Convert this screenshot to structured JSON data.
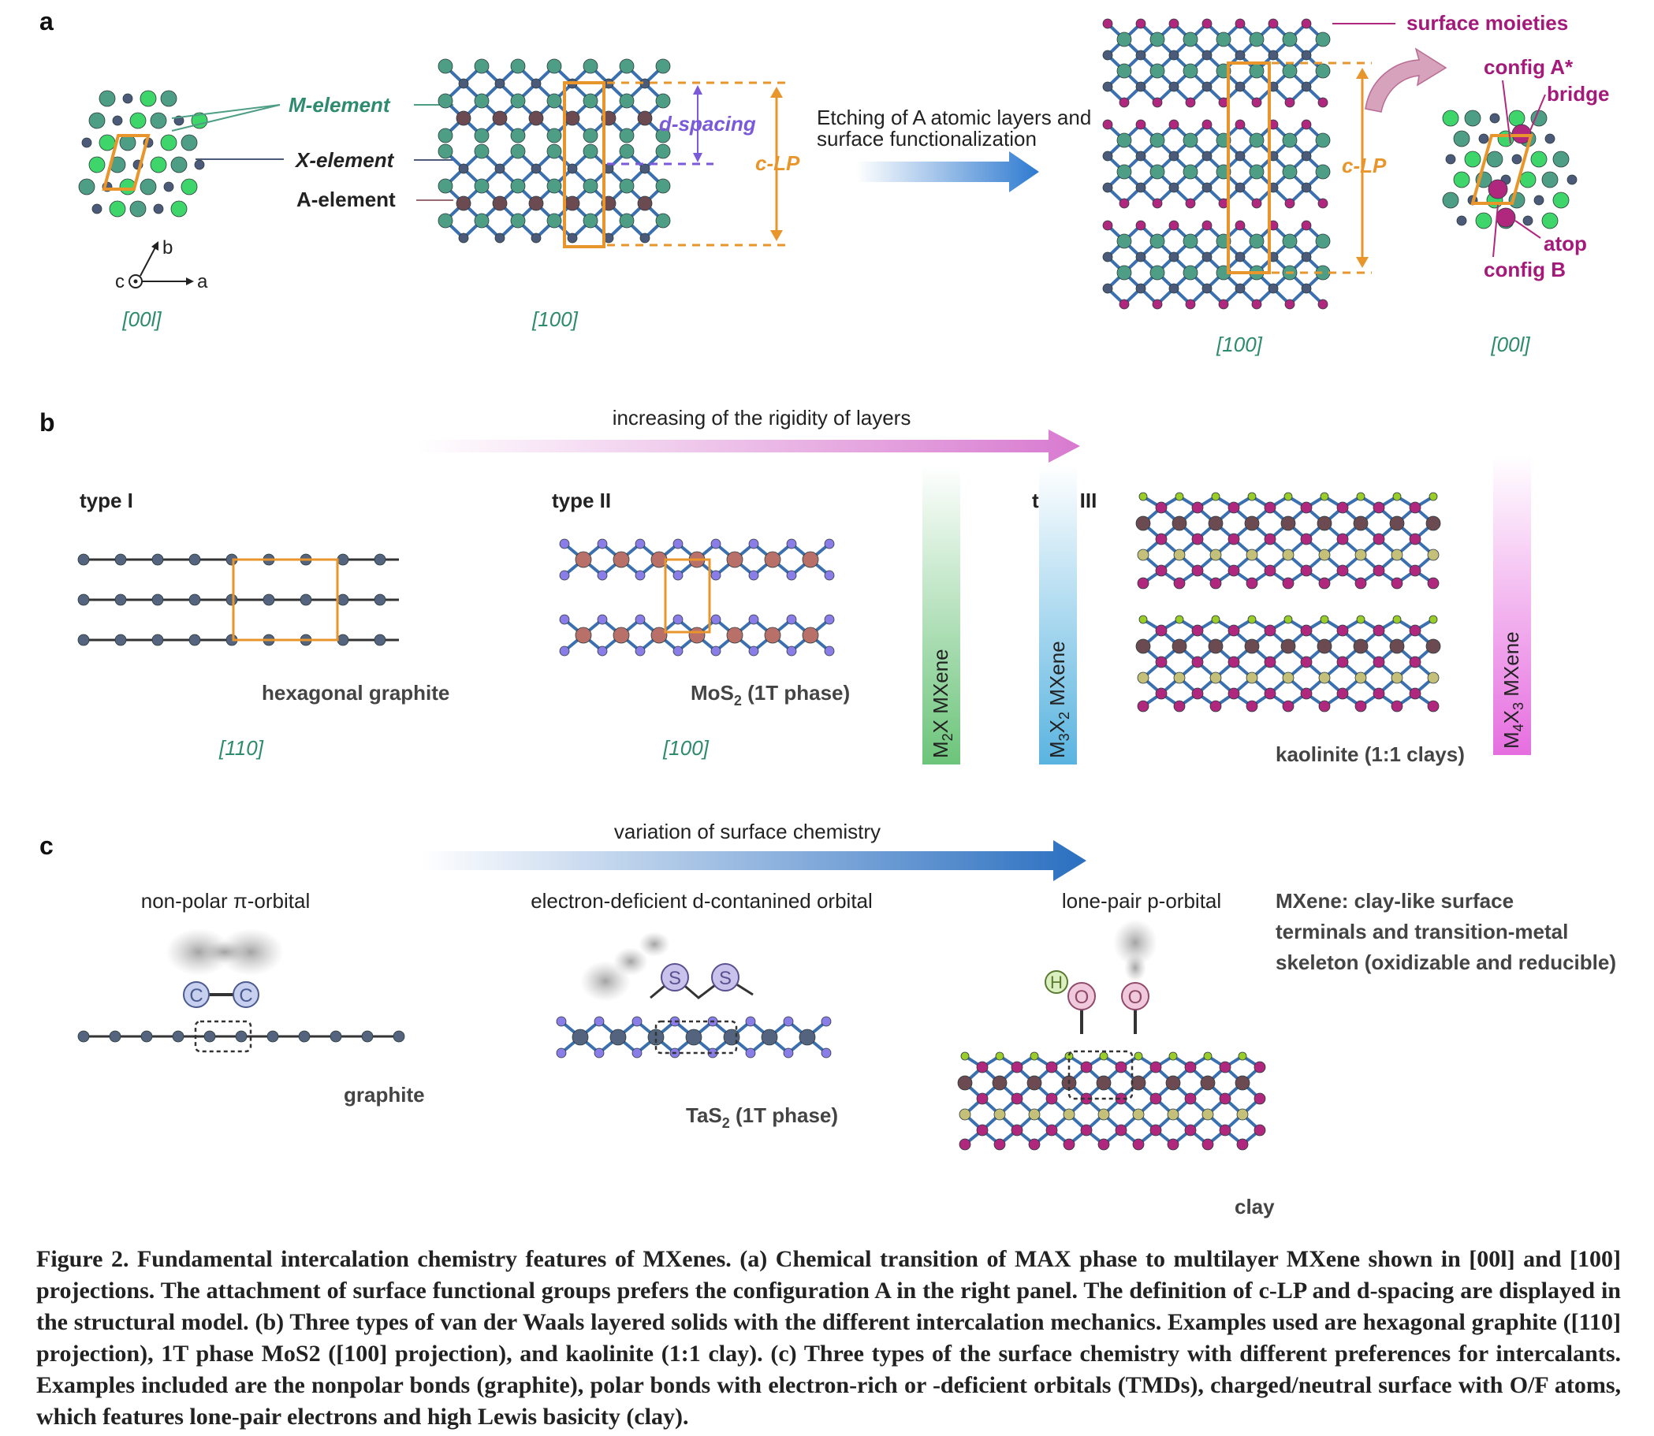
{
  "panel_a": {
    "label": "a",
    "m_element": "M-element",
    "x_element": "X-element",
    "a_element": "A-element",
    "axis_b": "b",
    "axis_a": "a",
    "axis_c": "c",
    "proj_001_left": "[00l]",
    "proj_100_max": "[100]",
    "d_spacing": "d-spacing",
    "c_lp_left": "c-LP",
    "etching_line1": "Etching of A atomic layers and",
    "etching_line2": "surface functionalization",
    "surface_moieties": "surface moieties",
    "c_lp_right": "c-LP",
    "config_a": "config A*",
    "bridge": "bridge",
    "atop": "atop",
    "config_b": "config B",
    "proj_100_mxene": "[100]",
    "proj_001_right": "[00l]"
  },
  "panel_b": {
    "label": "b",
    "arrow_text": "increasing of the rigidity of layers",
    "type1": "type I",
    "type2": "type II",
    "type3": "type III",
    "graphite_name": "hexagonal graphite",
    "mos2_name": "MoS",
    "mos2_sub": "2",
    "mos2_phase": " (1T phase)",
    "kaolinite_name": "kaolinite (1:1 clays)",
    "proj_110": "[110]",
    "proj_100": "[100]",
    "bar1": "M2X MXene",
    "bar2": "M3X2 MXene",
    "bar3": "M4X3 MXene"
  },
  "panel_c": {
    "label": "c",
    "arrow_text": "variation of surface chemistry",
    "orbital1": "non-polar π-orbital",
    "orbital2": "electron-deficient d-contanined orbital",
    "orbital3": "lone-pair p-orbital",
    "mxene_line1": "MXene: clay-like surface",
    "mxene_line2": "terminals and transition-metal",
    "mxene_line3": "skeleton (oxidizable and reducible)",
    "atom_c": "C",
    "atom_s": "S",
    "atom_o": "O",
    "atom_h": "H",
    "graphite": "graphite",
    "tas2_name": "TaS",
    "tas2_sub": "2",
    "tas2_phase": " (1T phase)",
    "clay": "clay"
  },
  "caption": "Figure 2. Fundamental intercalation chemistry features of MXenes. (a) Chemical transition of MAX phase to multilayer MXene shown in [00l] and [100] projections. The attachment of surface functional groups prefers the configuration A in the right panel. The definition of c-LP and d-spacing are displayed in the structural model. (b) Three types of van der Waals layered solids with the different intercalation mechanics. Examples used are hexagonal graphite ([110] projection), 1T phase MoS2 ([100] projection), and kaolinite (1:1 clay). (c) Three types of the surface chemistry with different preferences for intercalants. Examples included are the nonpolar bonds (graphite), polar bonds with electron-rich or -deficient orbitals (TMDs), charged/neutral surface with O/F atoms, which features lone-pair electrons and high Lewis basicity (clay).",
  "colors": {
    "m_atom": "#4e9e86",
    "x_atom": "#4a5a78",
    "a_atom": "#6b4a52",
    "bond_blue": "#3a6fb0",
    "surface": "#b0287e",
    "orange": "#e8962c",
    "bright_green": "#3ed66a",
    "graphite": "#54647e",
    "mo": "#b87068",
    "s_atom": "#8a7de8",
    "h_atom": "#9acd2a",
    "si_atom": "#c4c07a"
  }
}
